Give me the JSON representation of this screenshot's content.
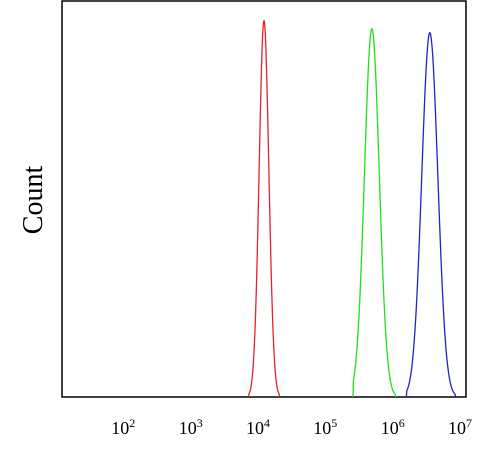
{
  "chart_data": {
    "type": "line",
    "title": "",
    "xlabel": "",
    "ylabel": "Count",
    "x_scale": "log",
    "xlim": [
      10,
      10000000
    ],
    "ylim": [
      0,
      1
    ],
    "grid": false,
    "legend": "none",
    "x_ticks": [
      {
        "base": "10",
        "exp": "2"
      },
      {
        "base": "10",
        "exp": "3"
      },
      {
        "base": "10",
        "exp": "4"
      },
      {
        "base": "10",
        "exp": "5"
      },
      {
        "base": "10",
        "exp": "6"
      },
      {
        "base": "10",
        "exp": "7"
      }
    ],
    "series": [
      {
        "color": "#e8202a",
        "peak_x": 10000,
        "peak_height": 0.95,
        "x_range": [
          5900,
          17000
        ]
      },
      {
        "color": "#22dd22",
        "peak_x": 400000,
        "peak_height": 0.93,
        "x_range": [
          210000,
          900000
        ]
      },
      {
        "color": "#2222cc",
        "peak_x": 2900000,
        "peak_height": 0.92,
        "x_range": [
          1300000,
          7000000
        ]
      }
    ]
  }
}
